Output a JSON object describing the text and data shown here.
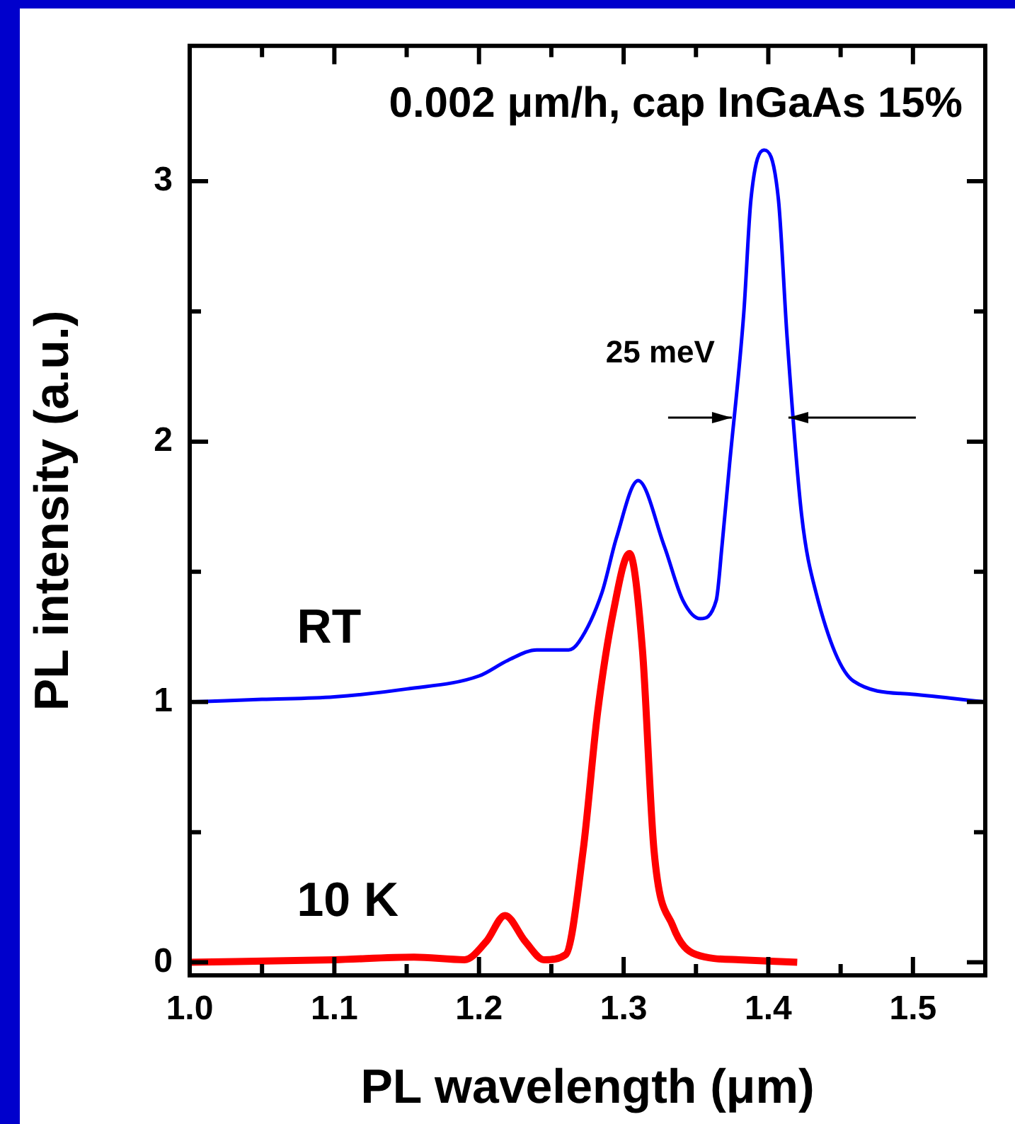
{
  "chart_data": {
    "type": "line",
    "title": "0.002 μm/h, cap InGaAs 15%",
    "xlabel": "PL wavelength (μm)",
    "ylabel": "PL intensity (a.u.)",
    "xlim": [
      1.0,
      1.55
    ],
    "ylim": [
      -0.05,
      3.52
    ],
    "xticks": [
      {
        "value": 1.0,
        "label": "1.0"
      },
      {
        "value": 1.05,
        "label": null
      },
      1.1,
      {
        "value": 1.15,
        "label": null
      },
      1.2,
      {
        "value": 1.25,
        "label": null
      },
      1.3,
      {
        "value": 1.35,
        "label": null
      },
      1.4,
      {
        "value": 1.45,
        "label": null
      },
      1.5
    ],
    "yticks": [
      0,
      {
        "value": 0.5,
        "label": null
      },
      1,
      {
        "value": 1.5,
        "label": null
      },
      2,
      {
        "value": 2.5,
        "label": null
      },
      3
    ],
    "grid": false,
    "legend": false,
    "marker": "none",
    "line_style": "solid",
    "annotations": [
      "25 meV"
    ],
    "series": [
      {
        "name": "RT",
        "color": "#0000ff",
        "x": [
          1.0,
          1.05,
          1.1,
          1.15,
          1.2,
          1.22,
          1.24,
          1.262,
          1.269,
          1.285,
          1.295,
          1.31,
          1.328,
          1.341,
          1.353,
          1.364,
          1.368,
          1.373,
          1.383,
          1.388,
          1.397,
          1.407,
          1.413,
          1.423,
          1.433,
          1.459,
          1.499,
          1.55
        ],
        "values": [
          1.0,
          1.01,
          1.02,
          1.05,
          1.1,
          1.16,
          1.2,
          1.2,
          1.23,
          1.42,
          1.63,
          1.85,
          1.6,
          1.39,
          1.32,
          1.39,
          1.6,
          1.9,
          2.49,
          2.93,
          3.12,
          2.93,
          2.4,
          1.72,
          1.42,
          1.08,
          1.03,
          1.0
        ]
      },
      {
        "name": "10 K",
        "color": "#ff0000",
        "x": [
          1.0,
          1.1,
          1.155,
          1.19,
          1.205,
          1.218,
          1.232,
          1.245,
          1.26,
          1.272,
          1.282,
          1.293,
          1.304,
          1.313,
          1.321,
          1.334,
          1.35,
          1.38,
          1.42
        ],
        "values": [
          0.0,
          0.01,
          0.02,
          0.01,
          0.08,
          0.18,
          0.08,
          0.01,
          0.03,
          0.43,
          0.96,
          1.35,
          1.57,
          1.2,
          0.43,
          0.14,
          0.03,
          0.01,
          0.0
        ]
      }
    ]
  }
}
